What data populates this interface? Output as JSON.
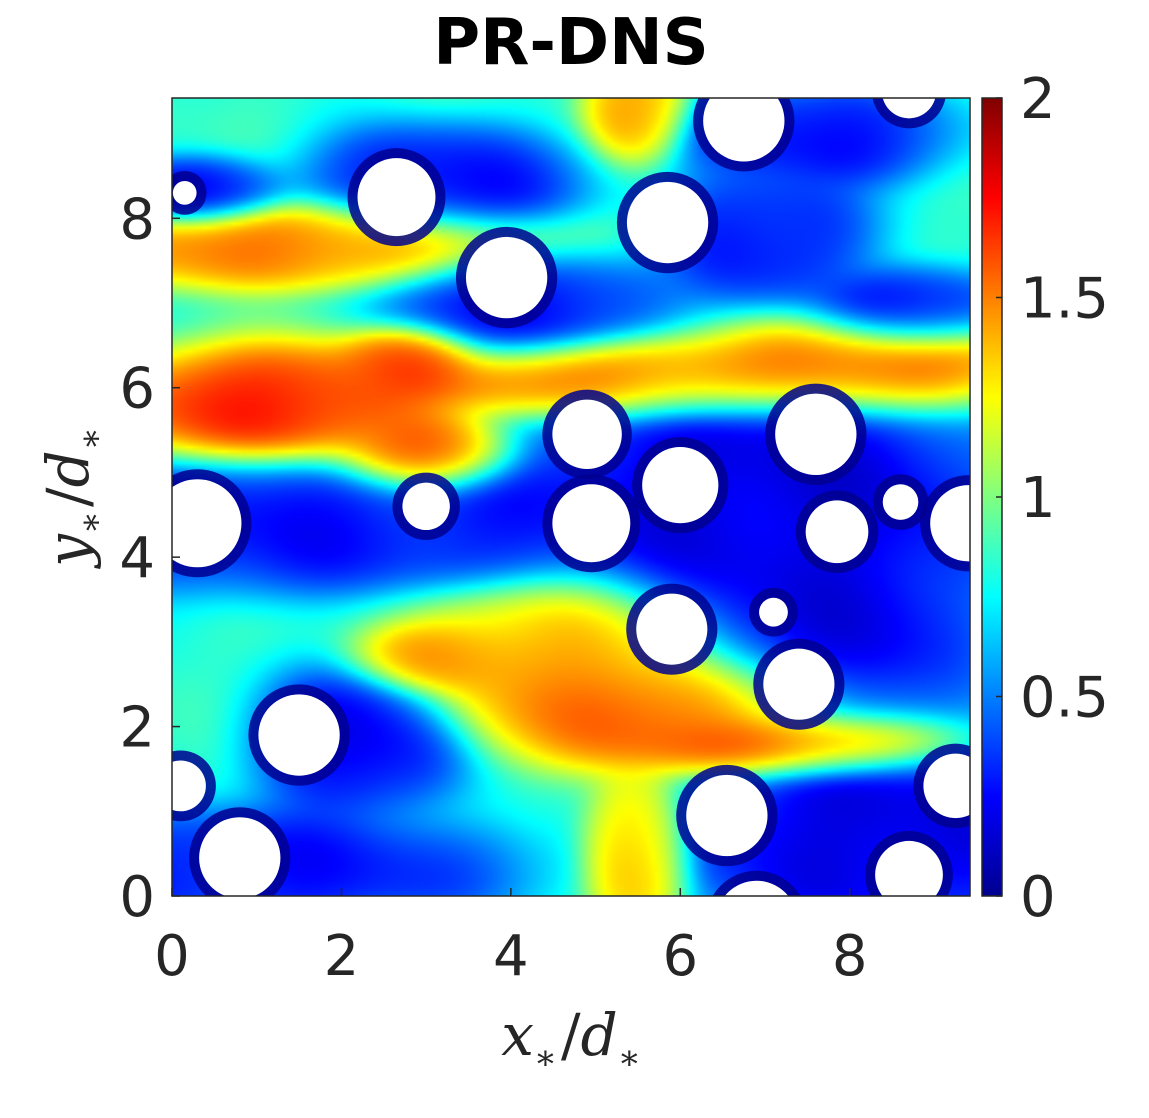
{
  "chart_data": {
    "type": "heatmap",
    "title": "PR-DNS",
    "xlabel": {
      "main": "x",
      "sub": "∗",
      "over": "/",
      "main2": "d",
      "sub2": "∗"
    },
    "ylabel": {
      "main": "y",
      "sub": "∗",
      "over": "/",
      "main2": "d",
      "sub2": "∗"
    },
    "xlim": [
      0,
      9.42
    ],
    "ylim": [
      0,
      9.42
    ],
    "x_ticks": [
      0,
      2,
      4,
      6,
      8
    ],
    "y_ticks": [
      0,
      2,
      4,
      6,
      8
    ],
    "x_tick_labels": [
      "0",
      "2",
      "4",
      "6",
      "8"
    ],
    "y_tick_labels": [
      "0",
      "2",
      "4",
      "6",
      "8"
    ],
    "colorbar": {
      "colormap": "jet",
      "range": [
        0,
        2
      ],
      "ticks": [
        0,
        0.5,
        1,
        1.5,
        2
      ],
      "tick_labels": [
        "0",
        "0.5",
        "1",
        "1.5",
        "2"
      ]
    },
    "field_background": 0.85,
    "field_features": [
      {
        "x": 1.2,
        "y": 5.8,
        "value": 1.8,
        "sx": 1.0,
        "sy": 0.35
      },
      {
        "x": 3.0,
        "y": 5.2,
        "value": 1.75,
        "sx": 0.5,
        "sy": 0.25
      },
      {
        "x": 2.8,
        "y": 6.3,
        "value": 1.65,
        "sx": 0.4,
        "sy": 0.2
      },
      {
        "x": 5.5,
        "y": 6.1,
        "value": 1.75,
        "sx": 1.4,
        "sy": 0.25
      },
      {
        "x": 8.2,
        "y": 6.3,
        "value": 1.75,
        "sx": 1.0,
        "sy": 0.3
      },
      {
        "x": 1.5,
        "y": 7.7,
        "value": 1.6,
        "sx": 1.5,
        "sy": 0.25
      },
      {
        "x": 4.6,
        "y": 2.8,
        "value": 1.5,
        "sx": 0.9,
        "sy": 0.5
      },
      {
        "x": 6.0,
        "y": 2.2,
        "value": 1.7,
        "sx": 1.0,
        "sy": 0.35
      },
      {
        "x": 7.4,
        "y": 1.8,
        "value": 1.9,
        "sx": 0.9,
        "sy": 0.2
      },
      {
        "x": 5.5,
        "y": 0.5,
        "value": 1.5,
        "sx": 0.3,
        "sy": 0.5
      },
      {
        "x": 5.5,
        "y": 9.3,
        "value": 1.5,
        "sx": 0.3,
        "sy": 0.3
      },
      {
        "x": 3.2,
        "y": 2.8,
        "value": 1.5,
        "sx": 0.5,
        "sy": 0.2
      },
      {
        "x": 6.8,
        "y": 4.8,
        "value": 0.1,
        "sx": 1.5,
        "sy": 0.8
      },
      {
        "x": 7.8,
        "y": 3.2,
        "value": 0.15,
        "sx": 0.9,
        "sy": 0.8
      },
      {
        "x": 8.3,
        "y": 0.7,
        "value": 0.1,
        "sx": 1.2,
        "sy": 0.6
      },
      {
        "x": 1.1,
        "y": 4.4,
        "value": 0.2,
        "sx": 1.3,
        "sy": 0.4
      },
      {
        "x": 3.6,
        "y": 4.4,
        "value": 0.25,
        "sx": 1.2,
        "sy": 0.35
      },
      {
        "x": 2.2,
        "y": 1.8,
        "value": 0.15,
        "sx": 0.6,
        "sy": 0.45
      },
      {
        "x": 3.2,
        "y": 8.4,
        "value": 0.2,
        "sx": 0.8,
        "sy": 0.35
      },
      {
        "x": 7.0,
        "y": 7.8,
        "value": 0.2,
        "sx": 0.6,
        "sy": 0.4
      },
      {
        "x": 8.7,
        "y": 6.9,
        "value": 0.15,
        "sx": 0.6,
        "sy": 0.25
      },
      {
        "x": 4.2,
        "y": 7.0,
        "value": 0.2,
        "sx": 0.8,
        "sy": 0.35
      },
      {
        "x": 1.0,
        "y": 0.3,
        "value": 0.2,
        "sx": 1.5,
        "sy": 0.35
      },
      {
        "x": 7.6,
        "y": 9.0,
        "value": 0.2,
        "sx": 0.8,
        "sy": 0.3
      },
      {
        "x": 0.3,
        "y": 8.3,
        "value": 0.2,
        "sx": 0.5,
        "sy": 0.2
      }
    ],
    "particles": [
      {
        "x": 0.3,
        "y": 4.4,
        "r": 0.52
      },
      {
        "x": 9.4,
        "y": 4.4,
        "r": 0.45
      },
      {
        "x": 0.15,
        "y": 8.3,
        "r": 0.14
      },
      {
        "x": 2.65,
        "y": 8.25,
        "r": 0.46
      },
      {
        "x": 3.95,
        "y": 7.3,
        "r": 0.48
      },
      {
        "x": 5.85,
        "y": 7.95,
        "r": 0.48
      },
      {
        "x": 6.75,
        "y": 9.15,
        "r": 0.48
      },
      {
        "x": 8.7,
        "y": 9.5,
        "r": 0.32
      },
      {
        "x": 4.9,
        "y": 5.45,
        "r": 0.41
      },
      {
        "x": 7.6,
        "y": 5.45,
        "r": 0.48
      },
      {
        "x": 6.0,
        "y": 4.85,
        "r": 0.45
      },
      {
        "x": 3.0,
        "y": 4.6,
        "r": 0.28
      },
      {
        "x": 4.95,
        "y": 4.4,
        "r": 0.46
      },
      {
        "x": 7.85,
        "y": 4.3,
        "r": 0.37
      },
      {
        "x": 8.6,
        "y": 4.65,
        "r": 0.21
      },
      {
        "x": 5.9,
        "y": 3.15,
        "r": 0.42
      },
      {
        "x": 7.1,
        "y": 3.35,
        "r": 0.17
      },
      {
        "x": 7.4,
        "y": 2.5,
        "r": 0.42
      },
      {
        "x": 1.5,
        "y": 1.9,
        "r": 0.48
      },
      {
        "x": 0.1,
        "y": 1.3,
        "r": 0.3
      },
      {
        "x": 9.25,
        "y": 1.3,
        "r": 0.38
      },
      {
        "x": 0.8,
        "y": 0.45,
        "r": 0.48
      },
      {
        "x": 6.55,
        "y": 0.95,
        "r": 0.48
      },
      {
        "x": 6.9,
        "y": -0.3,
        "r": 0.48
      },
      {
        "x": 8.7,
        "y": 0.25,
        "r": 0.4
      }
    ]
  }
}
